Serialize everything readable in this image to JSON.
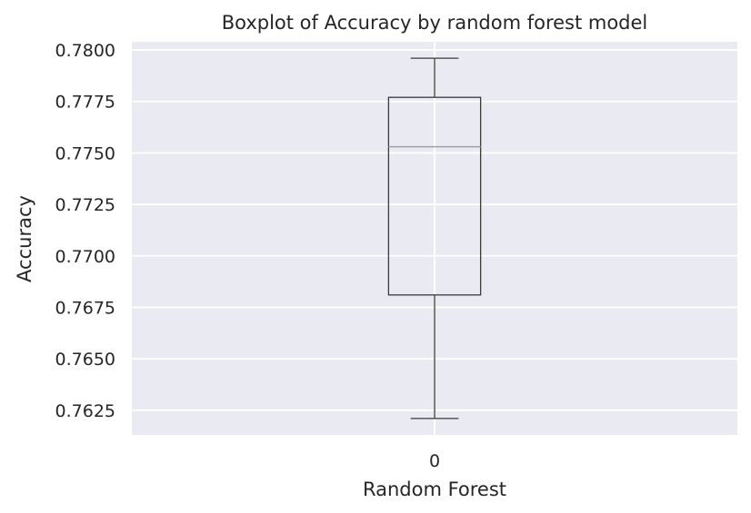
{
  "chart_data": {
    "type": "box",
    "title": "Boxplot of Accuracy by random forest model",
    "xlabel": "Random Forest",
    "ylabel": "Accuracy",
    "categories": [
      "0"
    ],
    "series": [
      {
        "whisker_low": 0.7621,
        "q1": 0.7681,
        "median": 0.7753,
        "q3": 0.7777,
        "whisker_high": 0.7796
      }
    ],
    "ylim": [
      0.7613,
      0.7804
    ],
    "yticks": [
      0.7625,
      0.765,
      0.7675,
      0.77,
      0.7725,
      0.775,
      0.7775,
      0.78
    ],
    "ytick_labels": [
      "0.7625",
      "0.7650",
      "0.7675",
      "0.7700",
      "0.7725",
      "0.7750",
      "0.7775",
      "0.7800"
    ],
    "grid": true,
    "colors": {
      "background": "#eaeaf2",
      "grid": "#ffffff",
      "box": "#3a3a3a",
      "median": "#a0a0a0"
    }
  }
}
